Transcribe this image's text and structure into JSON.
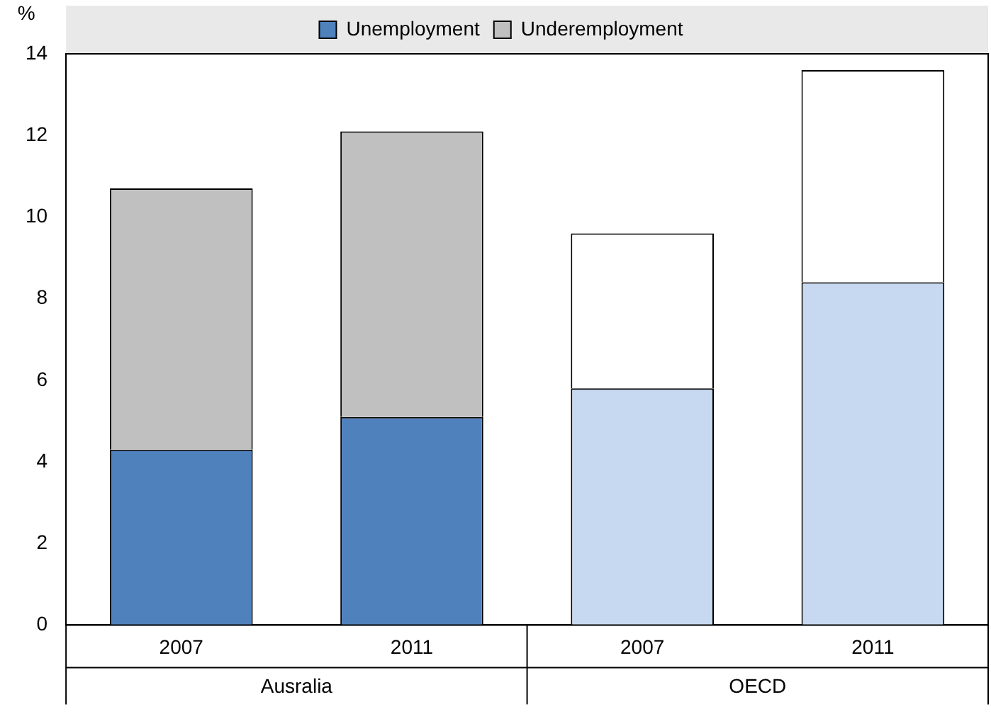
{
  "chart_data": {
    "type": "bar",
    "stacked": true,
    "ylabel": "%",
    "categories": [
      "2007",
      "2011",
      "2007",
      "2011"
    ],
    "series": [
      {
        "name": "Unemployment",
        "color": "#4f81bd",
        "colors": [
          "#4f81bd",
          "#4f81bd",
          "#c6d9f0",
          "#c6d9f0"
        ],
        "values": [
          4.3,
          5.1,
          5.8,
          8.4
        ]
      },
      {
        "name": "Underemployment",
        "color": "#c0c0c0",
        "colors": [
          "#c0c0c0",
          "#c0c0c0",
          "#ffffff",
          "#ffffff"
        ],
        "values": [
          6.4,
          7.0,
          3.8,
          5.2
        ]
      }
    ],
    "annotations": [
      "Ausralia",
      "OECD"
    ],
    "ylim": [
      0,
      14
    ],
    "yticks": [
      0,
      2,
      4,
      6,
      8,
      10,
      12,
      14
    ],
    "grid": false,
    "legend": "top"
  }
}
